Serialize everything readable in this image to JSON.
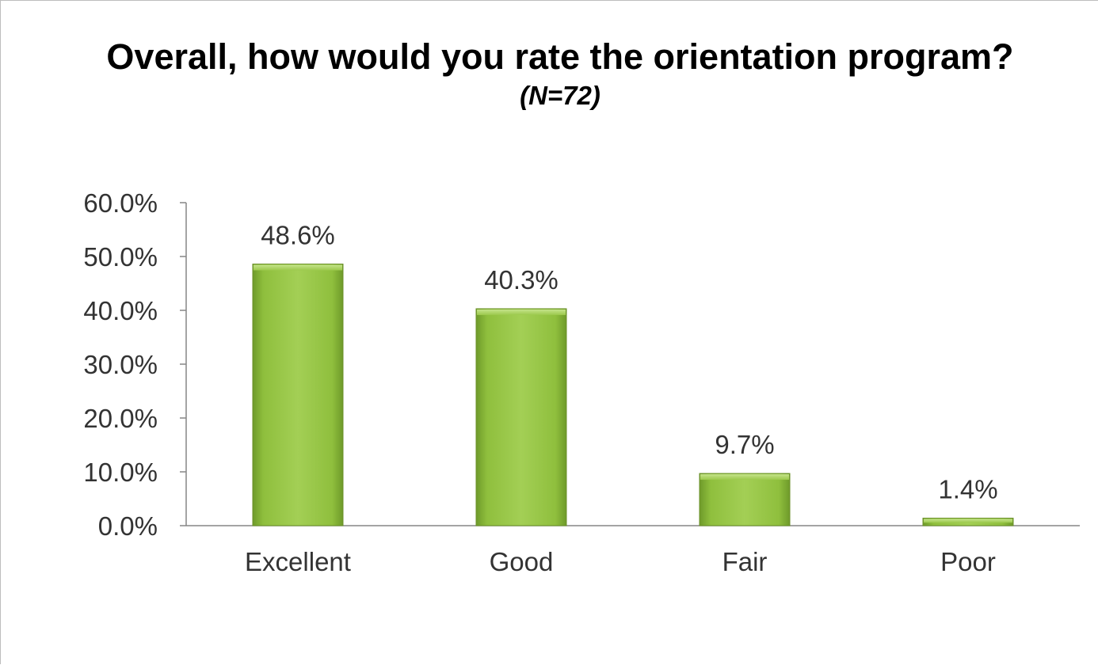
{
  "chart_data": {
    "type": "bar",
    "title": "Overall, how would you rate the orientation program?",
    "subtitle": "(N=72)",
    "categories": [
      "Excellent",
      "Good",
      "Fair",
      "Poor"
    ],
    "values": [
      48.6,
      40.3,
      9.7,
      1.4
    ],
    "data_labels": [
      "48.6%",
      "40.3%",
      "9.7%",
      "1.4%"
    ],
    "xlabel": "",
    "ylabel": "",
    "ylim": [
      0,
      60
    ],
    "yticks": [
      0,
      10,
      20,
      30,
      40,
      50,
      60
    ],
    "ytick_labels": [
      "0.0%",
      "10.0%",
      "20.0%",
      "30.0%",
      "40.0%",
      "50.0%",
      "60.0%"
    ],
    "grid": false,
    "legend": "none",
    "colors": {
      "bar_fill": "#8dbb3c",
      "bar_light": "#a9d45a",
      "bar_dark": "#6b9128",
      "axis": "#868686",
      "text": "#333333"
    }
  }
}
